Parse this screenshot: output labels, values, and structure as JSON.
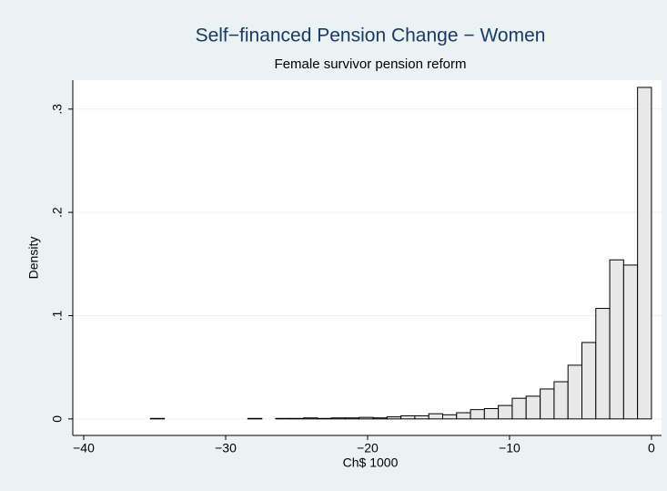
{
  "chart_data": {
    "type": "histogram",
    "title": "Self−financed Pension Change − Women",
    "subtitle": "Female survivor pension reform",
    "x_label": "Ch$ 1000",
    "y_label": "Density",
    "bins": [
      -35.3,
      -34.32,
      -33.34,
      -32.36,
      -31.38,
      -30.4,
      -29.42,
      -28.44,
      -27.45,
      -26.47,
      -25.49,
      -24.51,
      -23.53,
      -22.55,
      -21.57,
      -20.59,
      -19.61,
      -18.63,
      -17.65,
      -16.67,
      -15.69,
      -14.71,
      -13.73,
      -12.75,
      -11.77,
      -10.79,
      -9.81,
      -8.83,
      -7.84,
      -6.86,
      -5.88,
      -4.9,
      -3.92,
      -2.94,
      -1.96,
      -0.98,
      0
    ],
    "values": [
      0.0005,
      0,
      0,
      0,
      0,
      0,
      0,
      0.0005,
      0,
      0.0005,
      0.0005,
      0.001,
      0.0005,
      0.001,
      0.001,
      0.0015,
      0.001,
      0.002,
      0.003,
      0.003,
      0.005,
      0.004,
      0.006,
      0.009,
      0.01,
      0.013,
      0.02,
      0.022,
      0.029,
      0.036,
      0.052,
      0.074,
      0.107,
      0.154,
      0.149,
      0.321
    ],
    "color": "#e8e8e8",
    "edge_color": "#000000",
    "xlim": [
      -40.77,
      0.71
    ],
    "ylim": [
      -0.016,
      0.328
    ],
    "xticks": [
      {
        "value": -40,
        "label": "−40"
      },
      {
        "value": -30,
        "label": "−30"
      },
      {
        "value": -20,
        "label": "−20"
      },
      {
        "value": -10,
        "label": "−10"
      },
      0
    ],
    "yticks": [
      0,
      {
        "value": 0.1,
        "label": ".1"
      },
      {
        "value": 0.2,
        "label": ".2"
      },
      {
        "value": 0.3,
        "label": ".3"
      }
    ],
    "grid": true
  }
}
